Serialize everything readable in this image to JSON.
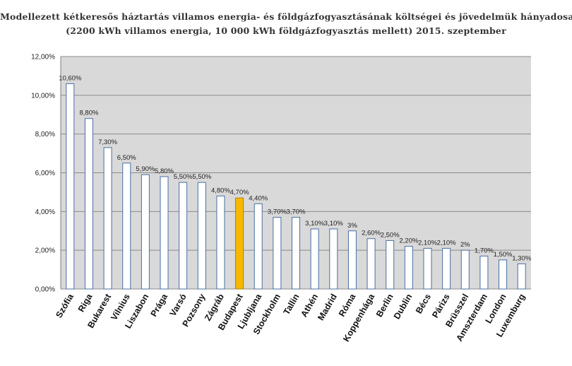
{
  "chart_data": {
    "type": "bar",
    "title": "Modellezett kétkeresős háztartás villamos energia- és földgázfogyasztásának költségei és jövedelmük hányadosa",
    "subtitle": "(2200 kWh villamos energia, 10 000 kWh földgázfogyasztás mellett) 2015. szeptember",
    "xlabel": "",
    "ylabel": "",
    "ylim": [
      0,
      12
    ],
    "grid": true,
    "y_ticks": [
      {
        "value": 0,
        "label": "0,00%"
      },
      {
        "value": 2,
        "label": "2,00%"
      },
      {
        "value": 4,
        "label": "4,00%"
      },
      {
        "value": 6,
        "label": "6,00%"
      },
      {
        "value": 8,
        "label": "8,00%"
      },
      {
        "value": 10,
        "label": "10,00%"
      },
      {
        "value": 12,
        "label": "12,00%"
      }
    ],
    "categories": [
      "Szófia",
      "Riga",
      "Bukarest",
      "Vilnius",
      "Liszabon",
      "Prága",
      "Varsó",
      "Pozsony",
      "Zágráb",
      "Budapest",
      "Ljubljana",
      "Stockholm",
      "Tallin",
      "Athén",
      "Madrid",
      "Róma",
      "Koppenhága",
      "Berlin",
      "Dublin",
      "Bécs",
      "Párizs",
      "Brüsszel",
      "Amszterdam",
      "London",
      "Luxemburg"
    ],
    "values": [
      10.6,
      8.8,
      7.3,
      6.5,
      5.9,
      5.8,
      5.5,
      5.5,
      4.8,
      4.7,
      4.4,
      3.7,
      3.7,
      3.1,
      3.1,
      3.0,
      2.6,
      2.5,
      2.2,
      2.1,
      2.1,
      2.0,
      1.7,
      1.5,
      1.3
    ],
    "value_labels": [
      "10,60%",
      "8,80%",
      "7,30%",
      "6,50%",
      "5,90%",
      "5,80%",
      "5,50%",
      "5,50%",
      "4,80%",
      "4,70%",
      "4,40%",
      "3,70%",
      "3,70%",
      "3,10%",
      "3,10%",
      "3%",
      "2,60%",
      "2,50%",
      "2,20%",
      "2,10%",
      "2,10%",
      "2%",
      "1,70%",
      "1,50%",
      "1,30%"
    ],
    "highlight_category": "Budapest",
    "colors": {
      "plot_background": "#d9d9d9",
      "gridline": "#8c8c8c",
      "bar_fill": "#ffffff",
      "bar_stroke": "#4a6fa5",
      "highlight_fill": "#f7b900",
      "highlight_stroke": "#a88200"
    }
  }
}
